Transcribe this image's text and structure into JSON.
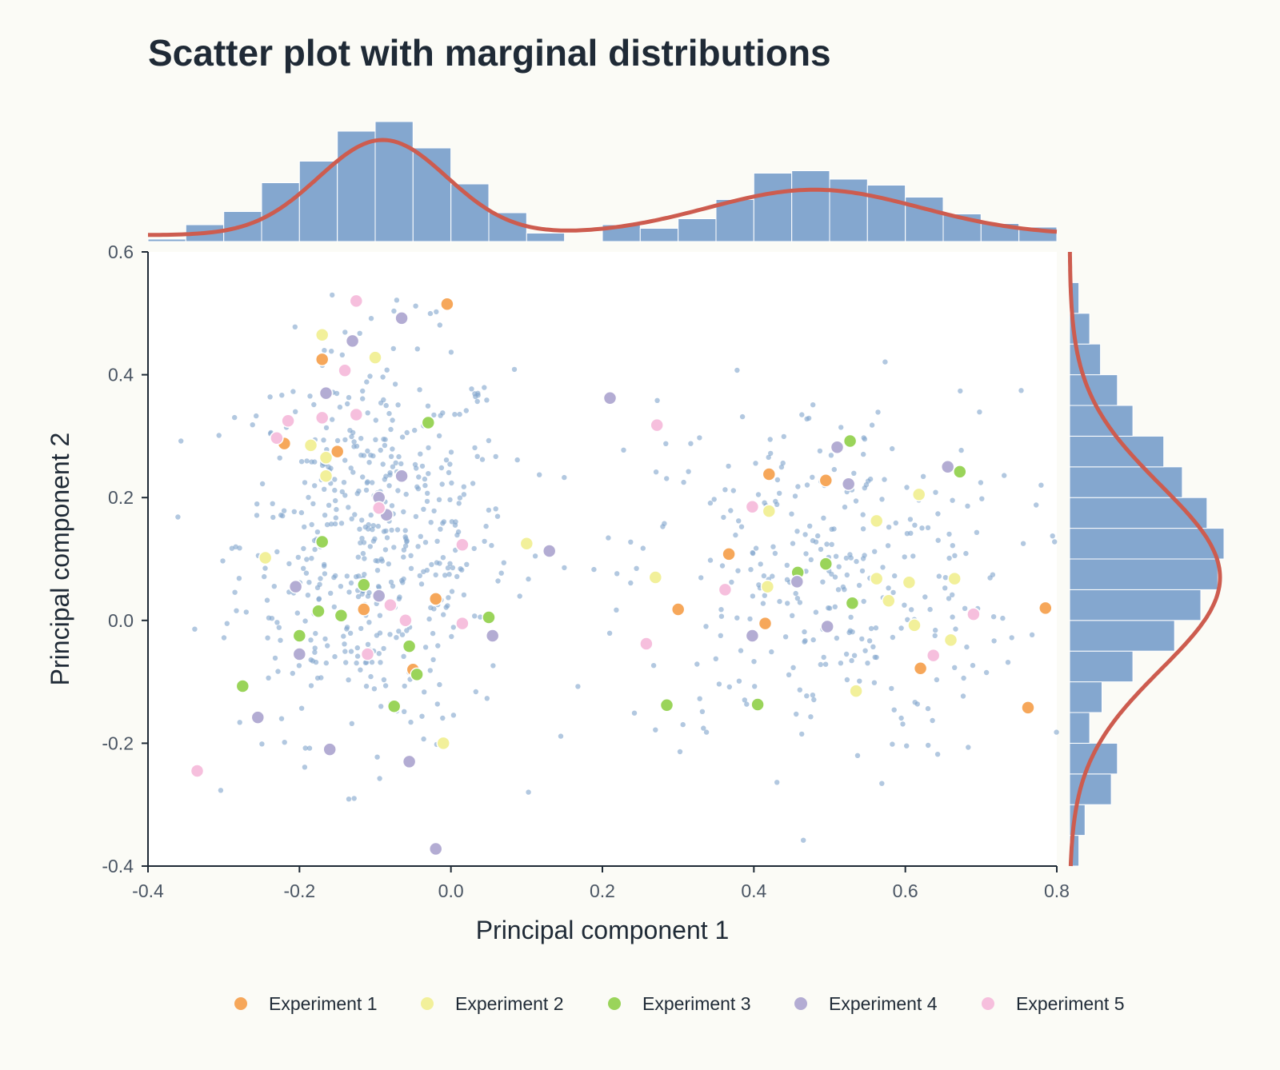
{
  "chart_data": {
    "type": "scatter",
    "title": "Scatter plot with marginal distributions",
    "xlabel": "Principal component 1",
    "ylabel": "Principal component 2",
    "xlim": [
      -0.4,
      0.8
    ],
    "ylim": [
      -0.4,
      0.6
    ],
    "xticks": [
      "-0.4",
      "-0.2",
      "0.0",
      "0.2",
      "0.4",
      "0.6",
      "0.8"
    ],
    "yticks": [
      "-0.4",
      "-0.2",
      "0.0",
      "0.2",
      "0.4",
      "0.6"
    ],
    "legend_position": "bottom",
    "colors": {
      "background": "#fbfbf6",
      "background_points": "#7ea3cc",
      "histogram": "#84a7cf",
      "kde": "#cd5c4f",
      "axis": "#1f2a36"
    },
    "background_cloud": {
      "description_clusters": [
        {
          "center": [
            -0.1,
            0.13
          ],
          "spread": [
            0.09,
            0.16
          ],
          "count": 520
        },
        {
          "center": [
            0.49,
            0.07
          ],
          "spread": [
            0.13,
            0.15
          ],
          "count": 330
        }
      ]
    },
    "series": [
      {
        "name": "Experiment 1",
        "color": "#f6a75a",
        "points": [
          [
            -0.17,
            0.425
          ],
          [
            -0.005,
            0.515
          ],
          [
            -0.22,
            0.288
          ],
          [
            -0.15,
            0.275
          ],
          [
            -0.115,
            0.018
          ],
          [
            -0.05,
            -0.08
          ],
          [
            -0.02,
            0.035
          ],
          [
            0.3,
            0.018
          ],
          [
            0.367,
            0.108
          ],
          [
            0.415,
            -0.005
          ],
          [
            0.42,
            0.238
          ],
          [
            0.495,
            0.228
          ],
          [
            0.62,
            -0.078
          ],
          [
            0.762,
            -0.142
          ],
          [
            0.785,
            0.02
          ]
        ]
      },
      {
        "name": "Experiment 2",
        "color": "#f2f09a",
        "points": [
          [
            -0.17,
            0.465
          ],
          [
            -0.1,
            0.428
          ],
          [
            -0.185,
            0.285
          ],
          [
            -0.165,
            0.265
          ],
          [
            -0.165,
            0.235
          ],
          [
            -0.245,
            0.102
          ],
          [
            -0.01,
            -0.2
          ],
          [
            0.1,
            0.125
          ],
          [
            0.27,
            0.07
          ],
          [
            0.42,
            0.178
          ],
          [
            0.418,
            0.055
          ],
          [
            0.562,
            0.162
          ],
          [
            0.562,
            0.068
          ],
          [
            0.578,
            0.032
          ],
          [
            0.605,
            0.062
          ],
          [
            0.612,
            -0.008
          ],
          [
            0.618,
            0.205
          ],
          [
            0.66,
            -0.032
          ],
          [
            0.665,
            0.068
          ],
          [
            0.535,
            -0.115
          ]
        ]
      },
      {
        "name": "Experiment 3",
        "color": "#9ad45a",
        "points": [
          [
            -0.03,
            0.322
          ],
          [
            -0.17,
            0.128
          ],
          [
            -0.115,
            0.058
          ],
          [
            -0.175,
            0.015
          ],
          [
            -0.145,
            0.008
          ],
          [
            -0.2,
            -0.025
          ],
          [
            -0.275,
            -0.107
          ],
          [
            -0.055,
            -0.042
          ],
          [
            -0.045,
            -0.088
          ],
          [
            -0.075,
            -0.14
          ],
          [
            0.05,
            0.005
          ],
          [
            0.285,
            -0.138
          ],
          [
            0.405,
            -0.137
          ],
          [
            0.458,
            0.078
          ],
          [
            0.495,
            0.092
          ],
          [
            0.527,
            0.292
          ],
          [
            0.53,
            0.028
          ],
          [
            0.672,
            0.242
          ]
        ]
      },
      {
        "name": "Experiment 4",
        "color": "#b3acd3",
        "points": [
          [
            -0.065,
            0.492
          ],
          [
            -0.13,
            0.455
          ],
          [
            -0.165,
            0.37
          ],
          [
            -0.065,
            0.235
          ],
          [
            -0.095,
            0.2
          ],
          [
            -0.085,
            0.172
          ],
          [
            0.13,
            0.113
          ],
          [
            -0.205,
            0.055
          ],
          [
            -0.095,
            0.04
          ],
          [
            -0.2,
            -0.055
          ],
          [
            0.055,
            -0.025
          ],
          [
            -0.255,
            -0.158
          ],
          [
            -0.16,
            -0.21
          ],
          [
            -0.055,
            -0.23
          ],
          [
            -0.02,
            -0.372
          ],
          [
            0.21,
            0.362
          ],
          [
            0.457,
            0.063
          ],
          [
            0.398,
            -0.025
          ],
          [
            0.497,
            -0.01
          ],
          [
            0.51,
            0.282
          ],
          [
            0.525,
            0.222
          ],
          [
            0.656,
            0.25
          ]
        ]
      },
      {
        "name": "Experiment 5",
        "color": "#f6bfdd",
        "points": [
          [
            -0.125,
            0.52
          ],
          [
            -0.14,
            0.407
          ],
          [
            -0.125,
            0.335
          ],
          [
            -0.17,
            0.33
          ],
          [
            -0.215,
            0.325
          ],
          [
            -0.23,
            0.297
          ],
          [
            -0.095,
            0.183
          ],
          [
            0.015,
            0.123
          ],
          [
            -0.08,
            0.025
          ],
          [
            -0.06,
            0.0
          ],
          [
            0.015,
            -0.005
          ],
          [
            -0.11,
            -0.055
          ],
          [
            -0.335,
            -0.245
          ],
          [
            0.272,
            0.318
          ],
          [
            0.398,
            0.185
          ],
          [
            0.362,
            0.05
          ],
          [
            0.258,
            -0.038
          ],
          [
            0.637,
            -0.057
          ],
          [
            0.69,
            0.01
          ]
        ]
      }
    ],
    "top_histogram": {
      "bin_edges_start": -0.4,
      "bin_width": 0.05,
      "relative_heights": [
        0.02,
        0.14,
        0.25,
        0.49,
        0.67,
        0.92,
        1.0,
        0.78,
        0.48,
        0.24,
        0.07,
        0.0,
        0.14,
        0.11,
        0.19,
        0.35,
        0.57,
        0.59,
        0.52,
        0.47,
        0.37,
        0.23,
        0.15,
        0.12
      ]
    },
    "right_histogram": {
      "bin_edges_start": -0.4,
      "bin_width": 0.05,
      "relative_widths": [
        0.06,
        0.1,
        0.27,
        0.31,
        0.13,
        0.21,
        0.41,
        0.68,
        0.85,
        0.96,
        1.0,
        0.89,
        0.73,
        0.61,
        0.41,
        0.31,
        0.2,
        0.13,
        0.06,
        0.0
      ]
    },
    "kde_x": {
      "components": [
        {
          "mean": -0.09,
          "sd": 0.085,
          "weight": 0.56
        },
        {
          "mean": 0.48,
          "sd": 0.14,
          "weight": 0.44
        }
      ]
    },
    "kde_y": {
      "components": [
        {
          "mean": 0.07,
          "sd": 0.15,
          "weight": 1.0
        }
      ]
    }
  },
  "legend": {
    "items": [
      {
        "label": "Experiment 1",
        "color": "#f6a75a"
      },
      {
        "label": "Experiment 2",
        "color": "#f2f09a"
      },
      {
        "label": "Experiment 3",
        "color": "#9ad45a"
      },
      {
        "label": "Experiment 4",
        "color": "#b3acd3"
      },
      {
        "label": "Experiment 5",
        "color": "#f6bfdd"
      }
    ]
  }
}
